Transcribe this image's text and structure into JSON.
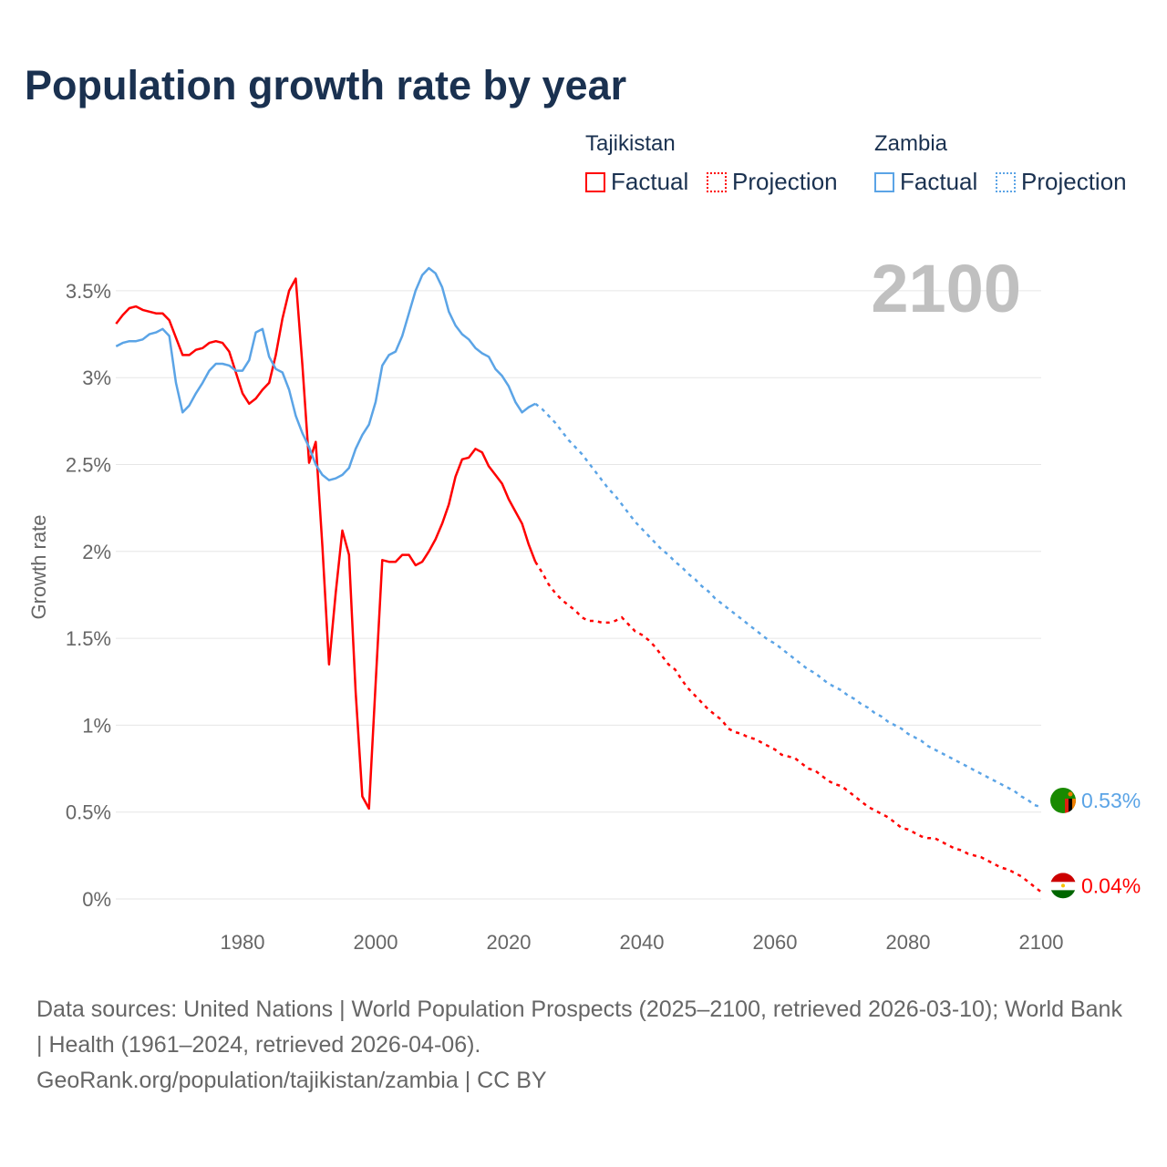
{
  "title": "Population growth rate by year",
  "legend": {
    "groups": [
      {
        "country": "Tajikistan",
        "factual": "Factual",
        "projection": "Projection",
        "color": "#ff0000"
      },
      {
        "country": "Zambia",
        "factual": "Factual",
        "projection": "Projection",
        "color": "#5ba4e6"
      }
    ]
  },
  "year_label": "2100",
  "footer": {
    "line1": "Data sources: United Nations | World Population Prospects (2025–2100, retrieved 2026-03-10); World Bank | Health (1961–2024, retrieved 2026-04-06).",
    "line2": "GeoRank.org/population/tajikistan/zambia | CC BY"
  },
  "chart_data": {
    "type": "line",
    "title": "Population growth rate by year",
    "ylabel": "Growth rate",
    "xlabel": "",
    "xlim": [
      1961,
      2100
    ],
    "ylim": [
      -0.1,
      3.7
    ],
    "x_ticks": [
      1980,
      2000,
      2020,
      2040,
      2060,
      2080,
      2100
    ],
    "y_ticks": [
      0,
      0.5,
      1,
      1.5,
      2,
      2.5,
      3,
      3.5
    ],
    "y_tick_labels": [
      "0%",
      "0.5%",
      "1%",
      "1.5%",
      "2%",
      "2.5%",
      "3%",
      "3.5%"
    ],
    "grid": true,
    "legend_position": "top-right",
    "series": [
      {
        "name": "Tajikistan",
        "color": "#ff0000",
        "end_label": "0.04%",
        "factual_start": 1961,
        "factual": [
          3.31,
          3.36,
          3.4,
          3.41,
          3.39,
          3.38,
          3.37,
          3.37,
          3.33,
          3.23,
          3.13,
          3.13,
          3.16,
          3.17,
          3.2,
          3.21,
          3.2,
          3.15,
          3.03,
          2.91,
          2.85,
          2.88,
          2.93,
          2.97,
          3.13,
          3.34,
          3.5,
          3.57,
          3.07,
          2.51,
          2.63,
          2.03,
          1.35,
          1.76,
          2.12,
          1.98,
          1.19,
          0.59,
          0.52,
          1.24,
          1.95,
          1.94,
          1.94,
          1.98,
          1.98,
          1.92,
          1.94,
          2.0,
          2.07,
          2.16,
          2.27,
          2.43,
          2.53,
          2.54,
          2.59,
          2.57,
          2.49,
          2.44,
          2.39,
          2.3,
          2.23,
          2.16,
          2.04,
          1.94
        ],
        "projection_start": 2024,
        "projection": [
          1.94,
          1.88,
          1.81,
          1.76,
          1.72,
          1.69,
          1.66,
          1.62,
          1.6,
          1.6,
          1.59,
          1.59,
          1.6,
          1.62,
          1.58,
          1.54,
          1.52,
          1.49,
          1.45,
          1.4,
          1.35,
          1.32,
          1.26,
          1.21,
          1.17,
          1.13,
          1.09,
          1.06,
          1.03,
          0.98,
          0.96,
          0.95,
          0.93,
          0.92,
          0.9,
          0.88,
          0.86,
          0.83,
          0.82,
          0.81,
          0.78,
          0.75,
          0.74,
          0.71,
          0.68,
          0.66,
          0.65,
          0.62,
          0.59,
          0.56,
          0.53,
          0.51,
          0.49,
          0.47,
          0.44,
          0.41,
          0.4,
          0.38,
          0.36,
          0.35,
          0.35,
          0.33,
          0.31,
          0.29,
          0.28,
          0.26,
          0.25,
          0.24,
          0.22,
          0.2,
          0.18,
          0.17,
          0.15,
          0.13,
          0.1,
          0.07,
          0.04
        ]
      },
      {
        "name": "Zambia",
        "color": "#5ba4e6",
        "end_label": "0.53%",
        "factual_start": 1961,
        "factual": [
          3.18,
          3.2,
          3.21,
          3.21,
          3.22,
          3.25,
          3.26,
          3.28,
          3.24,
          2.97,
          2.8,
          2.84,
          2.91,
          2.97,
          3.04,
          3.08,
          3.08,
          3.07,
          3.04,
          3.04,
          3.1,
          3.26,
          3.28,
          3.12,
          3.05,
          3.03,
          2.93,
          2.78,
          2.68,
          2.6,
          2.5,
          2.44,
          2.41,
          2.42,
          2.44,
          2.48,
          2.59,
          2.67,
          2.73,
          2.86,
          3.07,
          3.13,
          3.15,
          3.24,
          3.37,
          3.5,
          3.59,
          3.63,
          3.6,
          3.52,
          3.38,
          3.3,
          3.25,
          3.22,
          3.17,
          3.14,
          3.12,
          3.05,
          3.01,
          2.95,
          2.86,
          2.8,
          2.83,
          2.85
        ],
        "projection_start": 2024,
        "projection": [
          2.85,
          2.82,
          2.78,
          2.74,
          2.69,
          2.64,
          2.6,
          2.56,
          2.51,
          2.46,
          2.41,
          2.36,
          2.32,
          2.27,
          2.22,
          2.17,
          2.13,
          2.09,
          2.05,
          2.01,
          1.98,
          1.94,
          1.91,
          1.87,
          1.84,
          1.8,
          1.77,
          1.73,
          1.7,
          1.67,
          1.64,
          1.61,
          1.58,
          1.55,
          1.52,
          1.49,
          1.47,
          1.44,
          1.41,
          1.38,
          1.35,
          1.32,
          1.3,
          1.27,
          1.24,
          1.22,
          1.2,
          1.17,
          1.15,
          1.12,
          1.1,
          1.07,
          1.05,
          1.02,
          1.0,
          0.98,
          0.95,
          0.93,
          0.91,
          0.88,
          0.86,
          0.84,
          0.82,
          0.8,
          0.78,
          0.76,
          0.74,
          0.72,
          0.7,
          0.68,
          0.66,
          0.64,
          0.62,
          0.59,
          0.57,
          0.54,
          0.53
        ]
      }
    ]
  }
}
